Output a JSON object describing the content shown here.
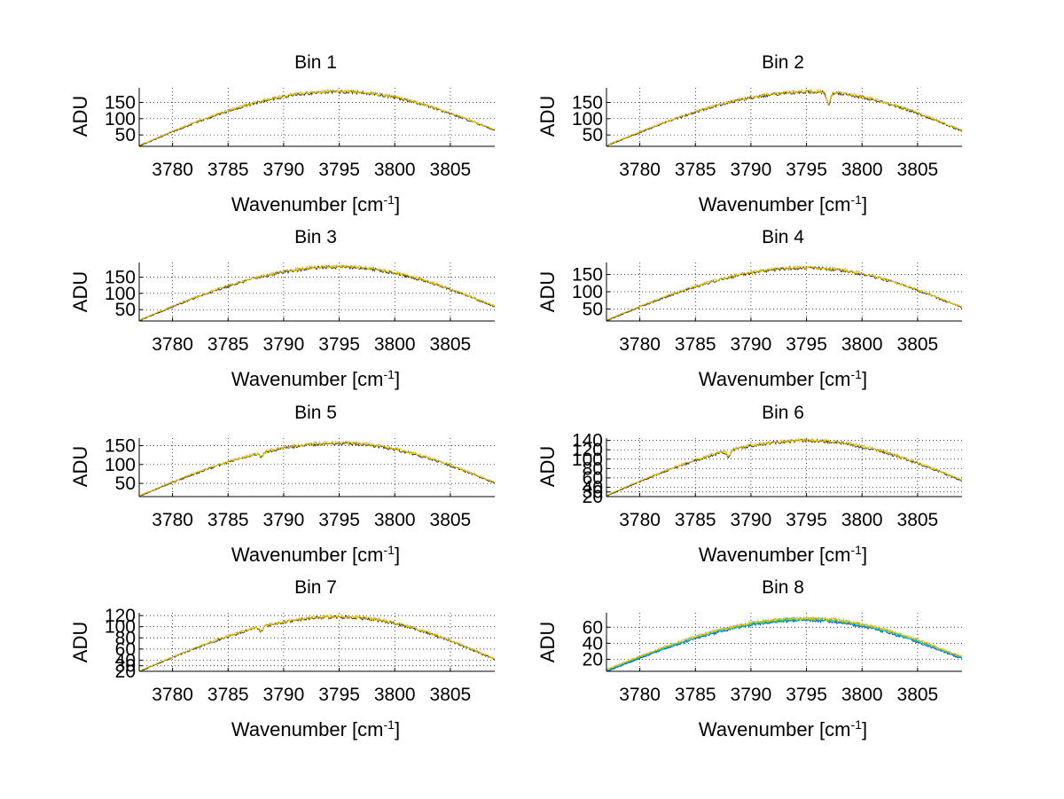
{
  "chart_data": [
    {
      "type": "line",
      "title": "Bin 1",
      "xlabel": "Wavenumber [cm",
      "xlabel_sup": "-1",
      "xlabel_end": "]",
      "ylabel": "ADU",
      "xlim": [
        3777,
        3809
      ],
      "ylim": [
        15,
        195
      ],
      "xticks": [
        3780,
        3785,
        3790,
        3795,
        3800,
        3805
      ],
      "yticks": [
        50,
        100,
        150
      ],
      "yticklabels": [
        "50",
        "100",
        "150"
      ],
      "peak_x": 3795,
      "peak_y": 184,
      "edge_y": [
        17,
        65
      ],
      "dips": [],
      "series": [
        {
          "name": "series-dark",
          "color": "#3a3a3a"
        },
        {
          "name": "series-yellow",
          "color": "#e8c200"
        }
      ],
      "grid": true
    },
    {
      "type": "line",
      "title": "Bin 2",
      "xlabel": "Wavenumber [cm",
      "xlabel_sup": "-1",
      "xlabel_end": "]",
      "ylabel": "ADU",
      "xlim": [
        3777,
        3809
      ],
      "ylim": [
        15,
        195
      ],
      "xticks": [
        3780,
        3785,
        3790,
        3795,
        3800,
        3805
      ],
      "yticks": [
        50,
        100,
        150
      ],
      "yticklabels": [
        "50",
        "100",
        "150"
      ],
      "peak_x": 3795.5,
      "peak_y": 183,
      "edge_y": [
        17,
        63
      ],
      "dips": [
        {
          "x": 3797,
          "depth": 35
        }
      ],
      "series": [
        {
          "name": "series-dark",
          "color": "#3a3a3a"
        },
        {
          "name": "series-yellow",
          "color": "#e8c200"
        }
      ],
      "grid": true
    },
    {
      "type": "line",
      "title": "Bin 3",
      "xlabel": "Wavenumber [cm",
      "xlabel_sup": "-1",
      "xlabel_end": "]",
      "ylabel": "ADU",
      "xlim": [
        3777,
        3809
      ],
      "ylim": [
        15,
        195
      ],
      "xticks": [
        3780,
        3785,
        3790,
        3795,
        3800,
        3805
      ],
      "yticks": [
        50,
        100,
        150
      ],
      "yticklabels": [
        "50",
        "100",
        "150"
      ],
      "peak_x": 3795,
      "peak_y": 182,
      "edge_y": [
        17,
        60
      ],
      "dips": [],
      "series": [
        {
          "name": "series-dark",
          "color": "#3a3a3a"
        },
        {
          "name": "series-yellow",
          "color": "#e8c200"
        }
      ],
      "grid": true
    },
    {
      "type": "line",
      "title": "Bin 4",
      "xlabel": "Wavenumber [cm",
      "xlabel_sup": "-1",
      "xlabel_end": "]",
      "ylabel": "ADU",
      "xlim": [
        3777,
        3809
      ],
      "ylim": [
        15,
        185
      ],
      "xticks": [
        3780,
        3785,
        3790,
        3795,
        3800,
        3805
      ],
      "yticks": [
        50,
        100,
        150
      ],
      "yticklabels": [
        "50",
        "100",
        "150"
      ],
      "peak_x": 3795,
      "peak_y": 170,
      "edge_y": [
        17,
        55
      ],
      "dips": [],
      "series": [
        {
          "name": "series-dark",
          "color": "#3a3a3a"
        },
        {
          "name": "series-yellow",
          "color": "#e8c200"
        }
      ],
      "grid": true
    },
    {
      "type": "line",
      "title": "Bin 5",
      "xlabel": "Wavenumber [cm",
      "xlabel_sup": "-1",
      "xlabel_end": "]",
      "ylabel": "ADU",
      "xlim": [
        3777,
        3809
      ],
      "ylim": [
        15,
        170
      ],
      "xticks": [
        3780,
        3785,
        3790,
        3795,
        3800,
        3805
      ],
      "yticks": [
        50,
        100,
        150
      ],
      "yticklabels": [
        "50",
        "100",
        "150"
      ],
      "peak_x": 3795,
      "peak_y": 157,
      "edge_y": [
        17,
        52
      ],
      "dips": [
        {
          "x": 3788,
          "depth": 10
        }
      ],
      "series": [
        {
          "name": "series-dark",
          "color": "#3a3a3a"
        },
        {
          "name": "series-yellow",
          "color": "#e8c200"
        }
      ],
      "grid": true
    },
    {
      "type": "line",
      "title": "Bin 6",
      "xlabel": "Wavenumber [cm",
      "xlabel_sup": "-1",
      "xlabel_end": "]",
      "ylabel": "ADU",
      "xlim": [
        3777,
        3809
      ],
      "ylim": [
        20,
        145
      ],
      "xticks": [
        3780,
        3785,
        3790,
        3795,
        3800,
        3805
      ],
      "yticks": [
        20,
        30,
        40,
        60,
        80,
        100,
        120,
        140
      ],
      "yticklabels": [
        "20",
        "30",
        "40",
        "60",
        "80",
        "100",
        "120",
        "140"
      ],
      "peak_x": 3795,
      "peak_y": 140,
      "edge_y": [
        22,
        55
      ],
      "dips": [
        {
          "x": 3788,
          "depth": 12
        }
      ],
      "series": [
        {
          "name": "series-dark",
          "color": "#3a3a3a"
        },
        {
          "name": "series-yellow",
          "color": "#e8c200"
        }
      ],
      "grid": true
    },
    {
      "type": "line",
      "title": "Bin 7",
      "xlabel": "Wavenumber [cm",
      "xlabel_sup": "-1",
      "xlabel_end": "]",
      "ylabel": "ADU",
      "xlim": [
        3777,
        3809
      ],
      "ylim": [
        20,
        125
      ],
      "xticks": [
        3780,
        3785,
        3790,
        3795,
        3800,
        3805
      ],
      "yticks": [
        20,
        30,
        40,
        60,
        80,
        100,
        120
      ],
      "yticklabels": [
        "20",
        "30",
        "40",
        "60",
        "80",
        "100",
        "120"
      ],
      "peak_x": 3795,
      "peak_y": 118,
      "edge_y": [
        20,
        42
      ],
      "dips": [
        {
          "x": 3788,
          "depth": 8
        }
      ],
      "series": [
        {
          "name": "series-dark",
          "color": "#3a3a3a"
        },
        {
          "name": "series-yellow",
          "color": "#e8c200"
        }
      ],
      "grid": true
    },
    {
      "type": "line",
      "title": "Bin 8",
      "xlabel": "Wavenumber [cm",
      "xlabel_sup": "-1",
      "xlabel_end": "]",
      "ylabel": "ADU",
      "xlim": [
        3777,
        3809
      ],
      "ylim": [
        5,
        78
      ],
      "xticks": [
        3780,
        3785,
        3790,
        3795,
        3800,
        3805
      ],
      "yticks": [
        20,
        40,
        60
      ],
      "yticklabels": [
        "20",
        "40",
        "60"
      ],
      "peak_x": 3795,
      "peak_y": 70,
      "edge_y": [
        6,
        22
      ],
      "dips": [],
      "series": [
        {
          "name": "series-blue",
          "color": "#1f3fd0"
        },
        {
          "name": "series-green",
          "color": "#18a070"
        },
        {
          "name": "series-cyan",
          "color": "#16c8d8"
        },
        {
          "name": "series-yellow",
          "color": "#e8c200"
        }
      ],
      "grid": true
    }
  ]
}
